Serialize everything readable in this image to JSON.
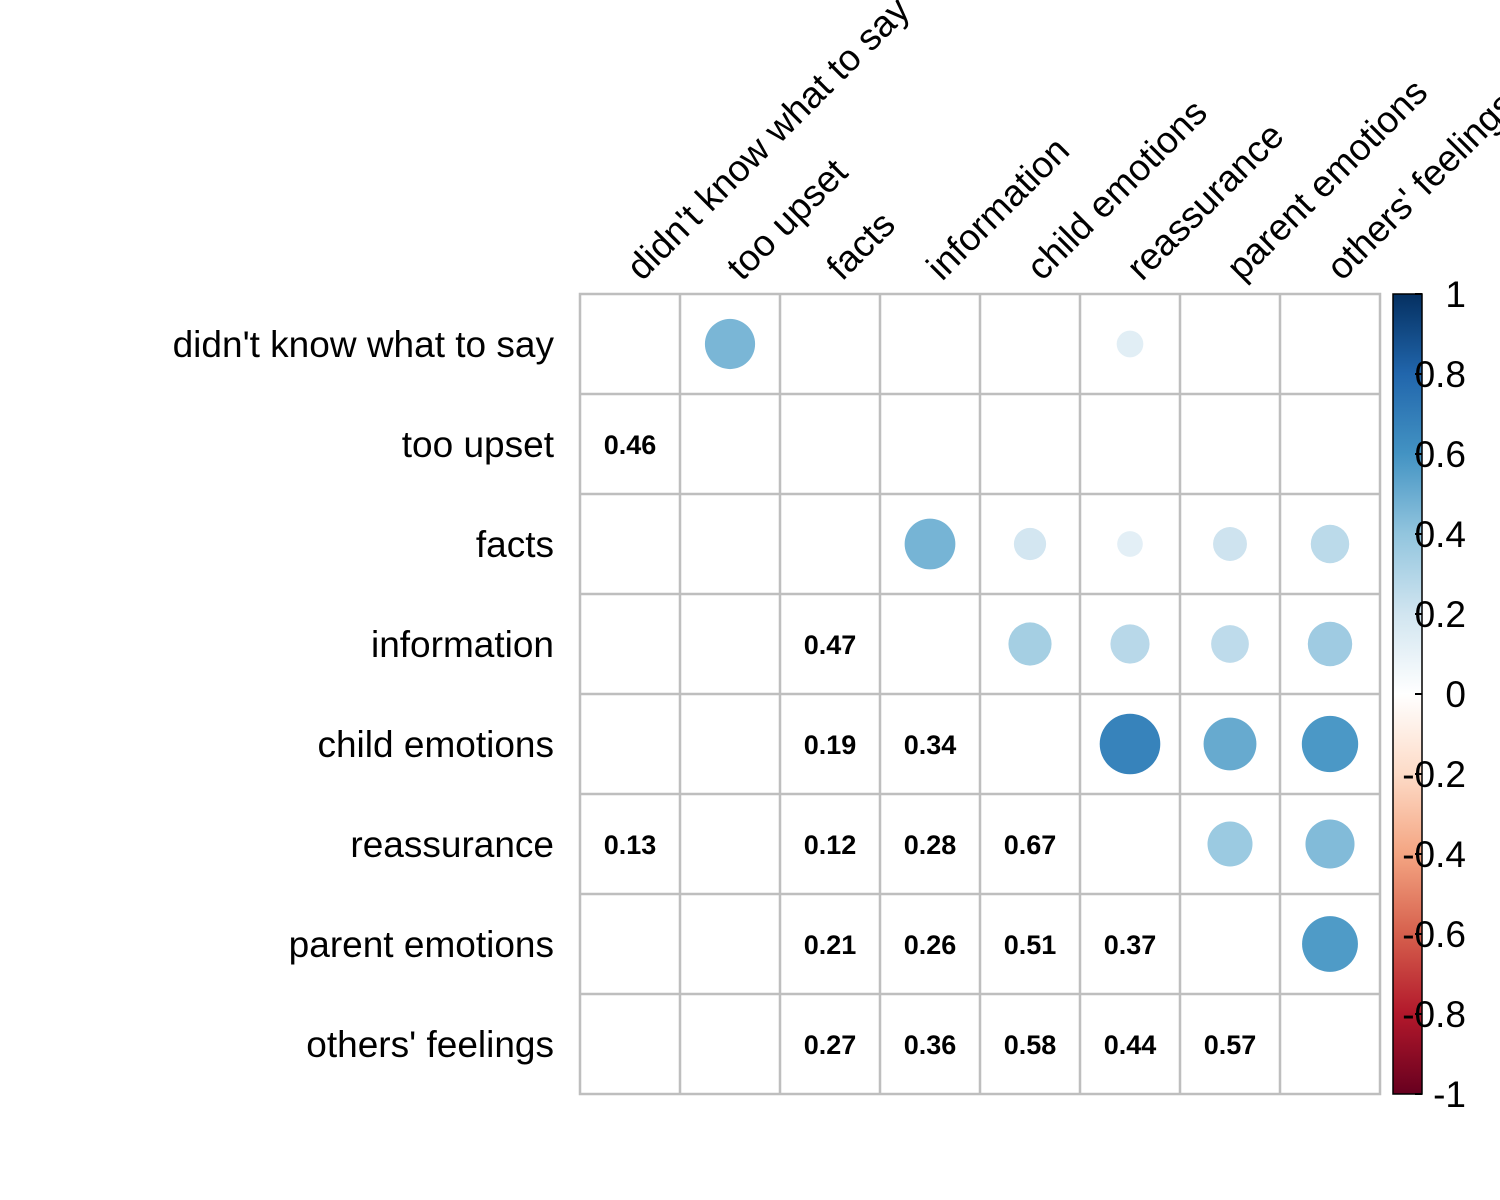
{
  "chart_data": {
    "type": "heatmap",
    "variables": [
      "didn't know what to say",
      "too upset",
      "facts",
      "information",
      "child emotions",
      "reassurance",
      "parent emotions",
      "others' feelings"
    ],
    "significant_pairs": [
      {
        "row": "too upset",
        "col": "didn't know what to say",
        "value": 0.46
      },
      {
        "row": "information",
        "col": "facts",
        "value": 0.47
      },
      {
        "row": "child emotions",
        "col": "facts",
        "value": 0.19
      },
      {
        "row": "child emotions",
        "col": "information",
        "value": 0.34
      },
      {
        "row": "reassurance",
        "col": "didn't know what to say",
        "value": 0.13
      },
      {
        "row": "reassurance",
        "col": "facts",
        "value": 0.12
      },
      {
        "row": "reassurance",
        "col": "information",
        "value": 0.28
      },
      {
        "row": "reassurance",
        "col": "child emotions",
        "value": 0.67
      },
      {
        "row": "parent emotions",
        "col": "facts",
        "value": 0.21
      },
      {
        "row": "parent emotions",
        "col": "information",
        "value": 0.26
      },
      {
        "row": "parent emotions",
        "col": "child emotions",
        "value": 0.51
      },
      {
        "row": "parent emotions",
        "col": "reassurance",
        "value": 0.37
      },
      {
        "row": "others' feelings",
        "col": "facts",
        "value": 0.27
      },
      {
        "row": "others' feelings",
        "col": "information",
        "value": 0.36
      },
      {
        "row": "others' feelings",
        "col": "child emotions",
        "value": 0.58
      },
      {
        "row": "others' feelings",
        "col": "reassurance",
        "value": 0.44
      },
      {
        "row": "others' feelings",
        "col": "parent emotions",
        "value": 0.57
      }
    ],
    "lower_triangle": "numbers",
    "upper_triangle": "circles",
    "color_scale": {
      "min": -1,
      "max": 1,
      "ticks": [
        "1",
        "0.8",
        "0.6",
        "0.4",
        "0.2",
        "0",
        "-0.2",
        "-0.4",
        "-0.6",
        "-0.8",
        "-1"
      ],
      "colors": [
        "#67001F",
        "#B2182B",
        "#D6604D",
        "#F4A582",
        "#FDDBC7",
        "#FFFFFF",
        "#D1E5F0",
        "#92C5DE",
        "#4393C3",
        "#2166AC",
        "#053061"
      ]
    },
    "grid": true,
    "legend_position": "right"
  }
}
